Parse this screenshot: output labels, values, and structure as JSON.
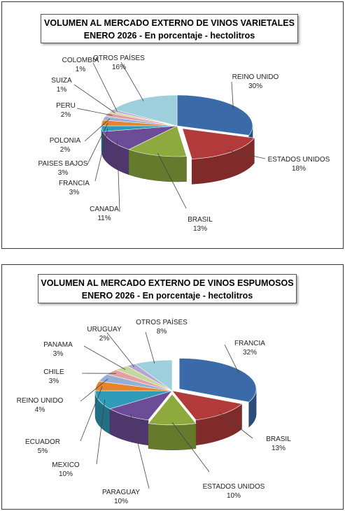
{
  "chart_data": [
    {
      "type": "pie",
      "title": "VOLUMEN AL MERCADO EXTERNO DE VINOS VARIETALES",
      "subtitle": "ENERO 2026 - En porcentaje - hectolitros",
      "categories": [
        "REINO UNIDO",
        "ESTADOS UNIDOS",
        "BRASIL",
        "CANADA",
        "FRANCIA",
        "PAISES BAJOS",
        "POLONIA",
        "PERU",
        "SUIZA",
        "COLOMBIA",
        "OTROS PAÍSES"
      ],
      "values": [
        30,
        18,
        13,
        11,
        3,
        3,
        2,
        2,
        1,
        1,
        16
      ],
      "value_labels": [
        "30%",
        "18%",
        "13%",
        "11%",
        "3%",
        "3%",
        "2%",
        "2%",
        "1%",
        "1%",
        "16%"
      ],
      "colors": [
        "#3b6aa8",
        "#b23a3a",
        "#8eaa3e",
        "#6c4c96",
        "#2e9bb8",
        "#e6832b",
        "#95b0d8",
        "#e3a0a0",
        "#c6d79b",
        "#b4a6d0",
        "#9dd0dc"
      ],
      "exploded": [
        "ESTADOS UNIDOS"
      ]
    },
    {
      "type": "pie",
      "title": "VOLUMEN AL MERCADO EXTERNO DE VINOS ESPUMOSOS",
      "subtitle": "ENERO 2026 - En porcentaje - hectolitros",
      "categories": [
        "FRANCIA",
        "BRASIL",
        "ESTADOS UNIDOS",
        "PARAGUAY",
        "MEXICO",
        "ECUADOR",
        "REINO UNIDO",
        "CHILE",
        "PANAMA",
        "URUGUAY",
        "OTROS PAÍSES"
      ],
      "values": [
        32,
        13,
        10,
        10,
        10,
        5,
        4,
        3,
        3,
        2,
        8
      ],
      "value_labels": [
        "32%",
        "13%",
        "10%",
        "10%",
        "10%",
        "5%",
        "4%",
        "3%",
        "3%",
        "2%",
        "8%"
      ],
      "colors": [
        "#3b6aa8",
        "#b23a3a",
        "#8eaa3e",
        "#6c4c96",
        "#2e9bb8",
        "#e6832b",
        "#95b0d8",
        "#e3a0a0",
        "#c6d79b",
        "#b4a6d0",
        "#9dd0dc"
      ],
      "exploded": [
        "FRANCIA",
        "ESTADOS UNIDOS"
      ]
    }
  ]
}
